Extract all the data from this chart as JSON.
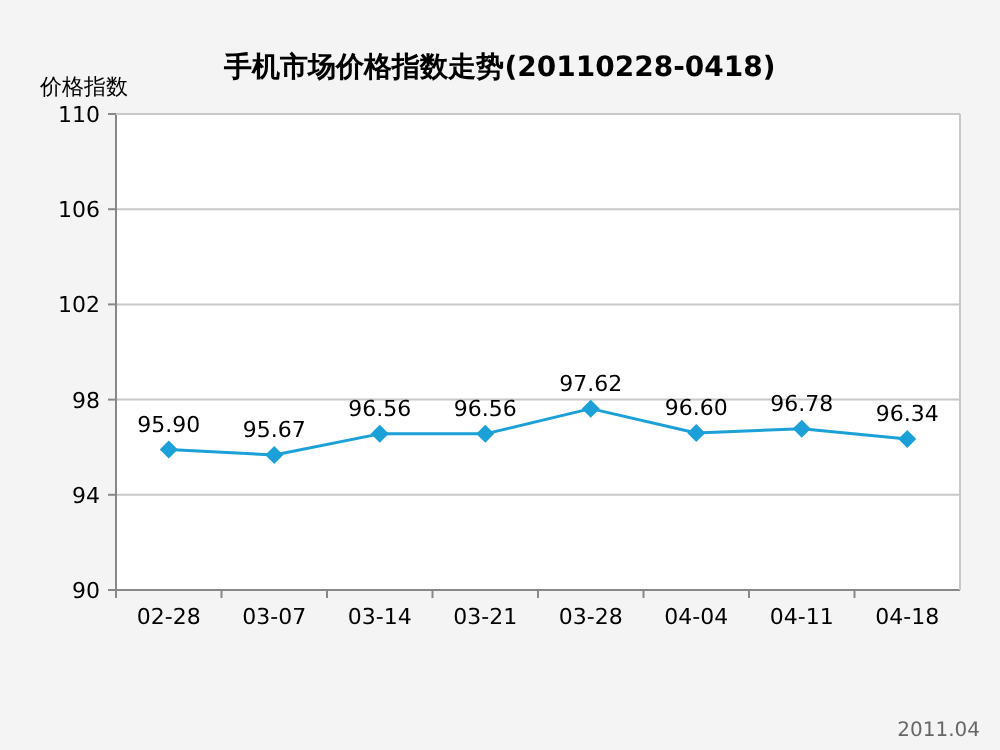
{
  "chart_data": {
    "type": "line",
    "title": "手机市场价格指数走势(20110228-0418)",
    "ylabel": "价格指数",
    "categories": [
      "02-28",
      "03-07",
      "03-14",
      "03-21",
      "03-28",
      "04-04",
      "04-11",
      "04-18"
    ],
    "series": [
      {
        "color": "#1ba1d8",
        "values": [
          95.9,
          95.67,
          96.56,
          96.56,
          97.62,
          96.6,
          96.78,
          96.34
        ]
      }
    ],
    "value_labels": [
      "95.90",
      "95.67",
      "96.56",
      "96.56",
      "97.62",
      "96.60",
      "96.78",
      "96.34"
    ],
    "ylim": [
      90,
      110
    ],
    "yticks": [
      90,
      94,
      98,
      102,
      106,
      110
    ],
    "grid": "y",
    "marker": "diamond",
    "annotations": [
      "2011.04"
    ]
  }
}
